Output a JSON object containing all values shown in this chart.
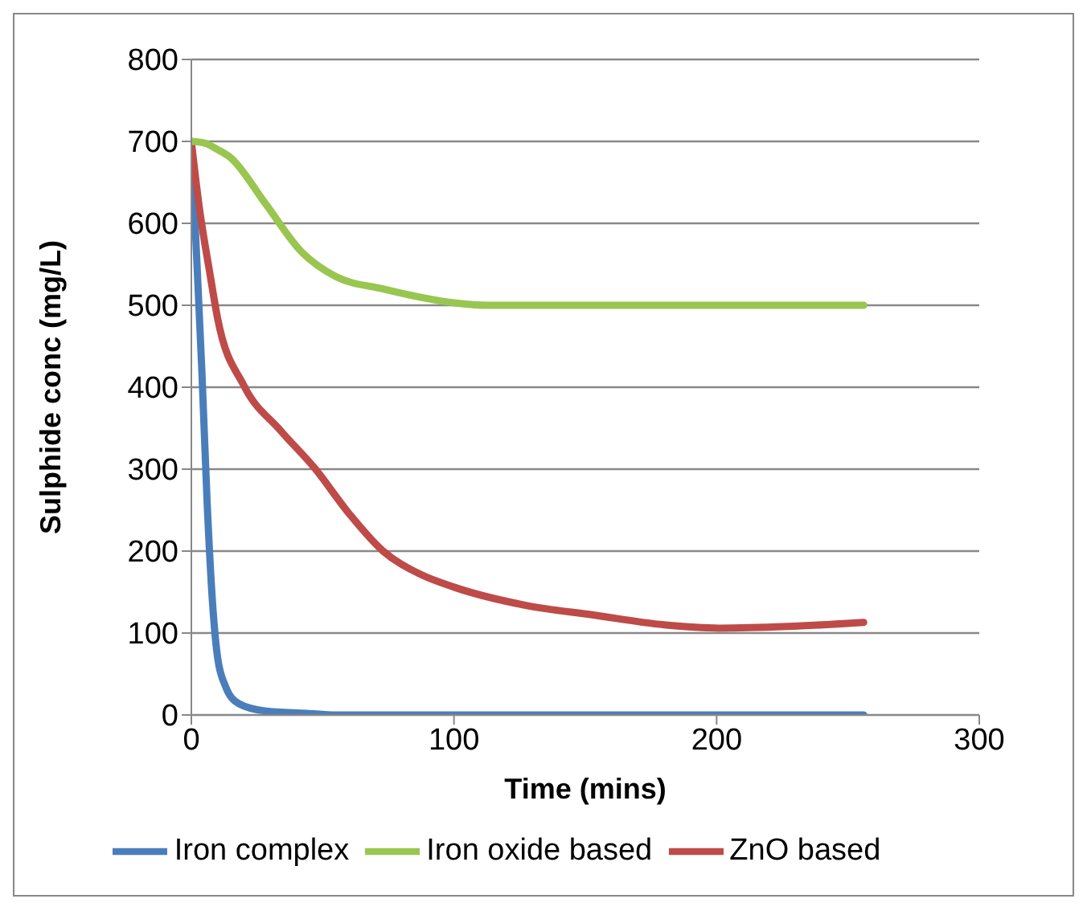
{
  "chart_data": {
    "type": "line",
    "xlabel": "Time (mins)",
    "ylabel": "Sulphide conc (mg/L)",
    "xlim": [
      0,
      300
    ],
    "xticks": [
      0,
      100,
      200,
      300
    ],
    "ylim": [
      0,
      800
    ],
    "yticks": [
      0,
      100,
      200,
      300,
      400,
      500,
      600,
      700,
      800
    ],
    "grid": "y",
    "legend": "bottom",
    "marker": "none",
    "line_style": "solid",
    "series": [
      {
        "name": "Iron complex",
        "color": "#4a7ebb",
        "x": [
          0,
          2,
          4,
          6,
          8,
          10,
          13,
          18,
          28,
          44,
          55,
          100,
          150,
          200,
          256
        ],
        "values": [
          700,
          560,
          420,
          260,
          140,
          70,
          35,
          14,
          5,
          2,
          0,
          0,
          0,
          0,
          0
        ]
      },
      {
        "name": "ZnO based",
        "color": "#be4b48",
        "x": [
          0,
          3,
          7,
          10,
          20,
          34,
          47,
          60,
          73,
          87,
          100,
          127,
          153,
          180,
          201,
          227,
          256
        ],
        "values": [
          700,
          620,
          540,
          484,
          402,
          347,
          301,
          246,
          200,
          172,
          156,
          134,
          122,
          110,
          106,
          108,
          113
        ]
      },
      {
        "name": "Iron oxide based",
        "color": "#98c650",
        "x": [
          0,
          5,
          10,
          15,
          28,
          42,
          55,
          73,
          87,
          100,
          113,
          150,
          200,
          256
        ],
        "values": [
          700,
          698,
          690,
          680,
          625,
          565,
          535,
          520,
          510,
          503,
          500,
          500,
          500,
          500
        ]
      }
    ]
  }
}
